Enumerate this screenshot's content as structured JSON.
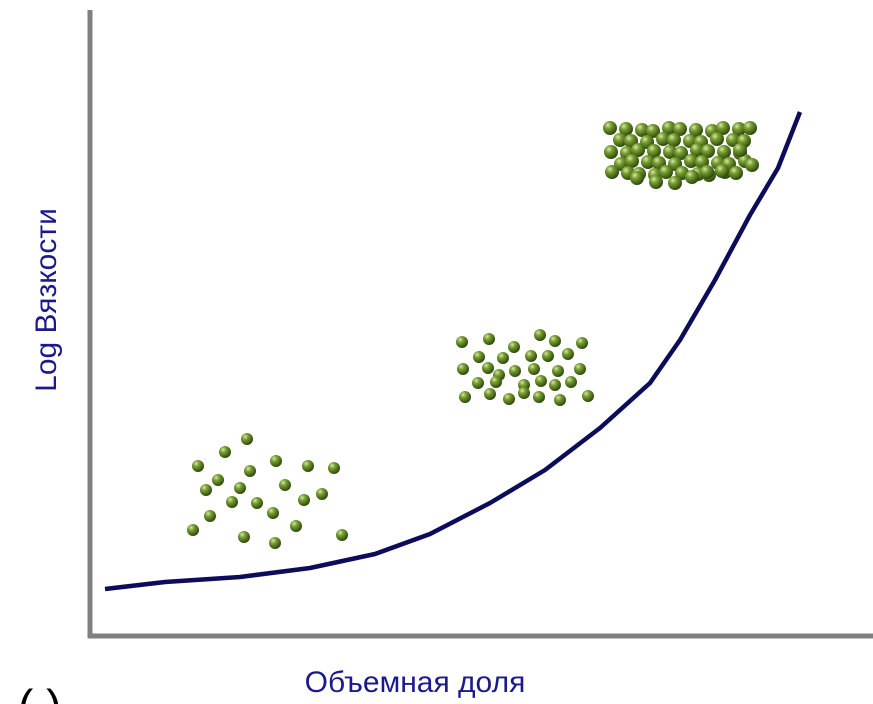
{
  "diagram": {
    "y_axis_label": "Log Вязкости",
    "x_axis_label": "Объемная доля",
    "figure_label": "( )"
  }
}
